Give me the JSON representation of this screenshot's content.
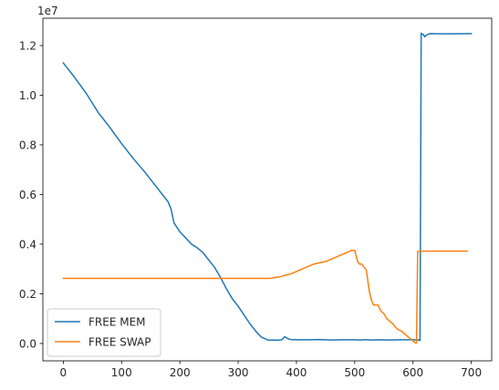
{
  "chart_data": {
    "type": "line",
    "title": "",
    "xlabel": "",
    "ylabel": "",
    "y_offset_text": "1e7",
    "xlim": [
      -35,
      735
    ],
    "ylim": [
      -700000,
      13100000
    ],
    "x_ticks": [
      {
        "value": 0,
        "label": "0"
      },
      {
        "value": 100,
        "label": "100"
      },
      {
        "value": 200,
        "label": "200"
      },
      {
        "value": 300,
        "label": "300"
      },
      {
        "value": 400,
        "label": "400"
      },
      {
        "value": 500,
        "label": "500"
      },
      {
        "value": 600,
        "label": "600"
      },
      {
        "value": 700,
        "label": "700"
      }
    ],
    "y_ticks": [
      {
        "value": 0,
        "label": "0.0"
      },
      {
        "value": 2000000,
        "label": "0.2"
      },
      {
        "value": 4000000,
        "label": "0.4"
      },
      {
        "value": 6000000,
        "label": "0.6"
      },
      {
        "value": 8000000,
        "label": "0.8"
      },
      {
        "value": 10000000,
        "label": "1.0"
      },
      {
        "value": 12000000,
        "label": "1.2"
      }
    ],
    "grid": false,
    "legend_position": "lower-left",
    "series": [
      {
        "name": "FREE MEM",
        "color": "#1f77b4",
        "x": [
          0,
          20,
          40,
          60,
          80,
          100,
          120,
          140,
          160,
          180,
          185,
          190,
          200,
          210,
          220,
          230,
          240,
          250,
          260,
          270,
          280,
          290,
          300,
          310,
          320,
          330,
          340,
          350,
          355,
          360,
          365,
          370,
          375,
          380,
          385,
          390,
          400,
          420,
          440,
          460,
          480,
          500,
          510,
          515,
          520,
          530,
          540,
          560,
          580,
          600,
          608,
          610,
          612,
          613,
          614,
          615,
          618,
          620,
          625,
          630,
          650,
          700
        ],
        "y": [
          11300000,
          10700000,
          10050000,
          9300000,
          8700000,
          8050000,
          7450000,
          6900000,
          6300000,
          5700000,
          5400000,
          4850000,
          4500000,
          4250000,
          4000000,
          3850000,
          3650000,
          3350000,
          3050000,
          2650000,
          2200000,
          1800000,
          1500000,
          1150000,
          800000,
          500000,
          250000,
          150000,
          130000,
          140000,
          130000,
          140000,
          150000,
          270000,
          200000,
          160000,
          150000,
          150000,
          160000,
          140000,
          150000,
          150000,
          140000,
          150000,
          150000,
          140000,
          150000,
          140000,
          150000,
          150000,
          140000,
          150000,
          120000,
          6000000,
          12500000,
          12450000,
          12450000,
          12350000,
          12450000,
          12480000,
          12470000,
          12480000
        ]
      },
      {
        "name": "FREE SWAP",
        "color": "#ff7f0e",
        "x": [
          0,
          100,
          200,
          300,
          340,
          355,
          360,
          370,
          375,
          380,
          390,
          400,
          410,
          420,
          430,
          440,
          450,
          460,
          470,
          480,
          490,
          495,
          500,
          505,
          508,
          512,
          515,
          520,
          525,
          528,
          532,
          535,
          540,
          545,
          550,
          555,
          560,
          565,
          570,
          575,
          580,
          585,
          590,
          595,
          600,
          603,
          606,
          608,
          612,
          620,
          650,
          693
        ],
        "y": [
          2620000,
          2620000,
          2620000,
          2620000,
          2620000,
          2620000,
          2650000,
          2680000,
          2700000,
          2750000,
          2800000,
          2900000,
          3000000,
          3100000,
          3200000,
          3250000,
          3300000,
          3400000,
          3500000,
          3600000,
          3700000,
          3750000,
          3750000,
          3300000,
          3200000,
          3200000,
          3100000,
          2950000,
          2100000,
          1800000,
          1550000,
          1550000,
          1550000,
          1300000,
          1200000,
          1000000,
          900000,
          800000,
          650000,
          550000,
          500000,
          400000,
          300000,
          200000,
          100000,
          30000,
          20000,
          3700000,
          3720000,
          3720000,
          3720000,
          3720000
        ]
      }
    ]
  }
}
